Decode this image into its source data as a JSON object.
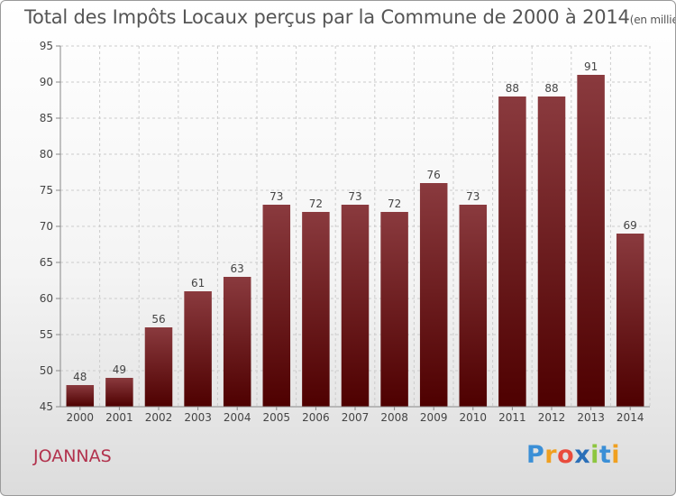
{
  "title": "Total des Impôts Locaux perçus par la Commune de 2000 à 2014",
  "subtitle": "(en milliers d'€)",
  "commune": "JOANNAS",
  "logo": {
    "letters": [
      "P",
      "r",
      "o",
      "x",
      "i",
      "t",
      "i"
    ],
    "colors": [
      "#3b8fd6",
      "#f0a020",
      "#e94b3c",
      "#2b6fb8",
      "#8dc63f",
      "#3b8fd6",
      "#f0a020"
    ]
  },
  "colors": {
    "bar_top": "#8a3a3e",
    "bar_bottom": "#4e0000",
    "grid": "#cccccc",
    "axis_text": "#444444"
  },
  "chart_data": {
    "type": "bar",
    "categories": [
      "2000",
      "2001",
      "2002",
      "2003",
      "2004",
      "2005",
      "2006",
      "2007",
      "2008",
      "2009",
      "2010",
      "2011",
      "2012",
      "2013",
      "2014"
    ],
    "values": [
      48,
      49,
      56,
      61,
      63,
      73,
      72,
      73,
      72,
      76,
      73,
      88,
      88,
      91,
      69
    ],
    "title": "Total des Impôts Locaux perçus par la Commune de 2000 à 2014",
    "xlabel": "",
    "ylabel": "",
    "ylim": [
      45,
      95
    ],
    "yticks": [
      45,
      50,
      55,
      60,
      65,
      70,
      75,
      80,
      85,
      90,
      95
    ],
    "grid": true
  }
}
